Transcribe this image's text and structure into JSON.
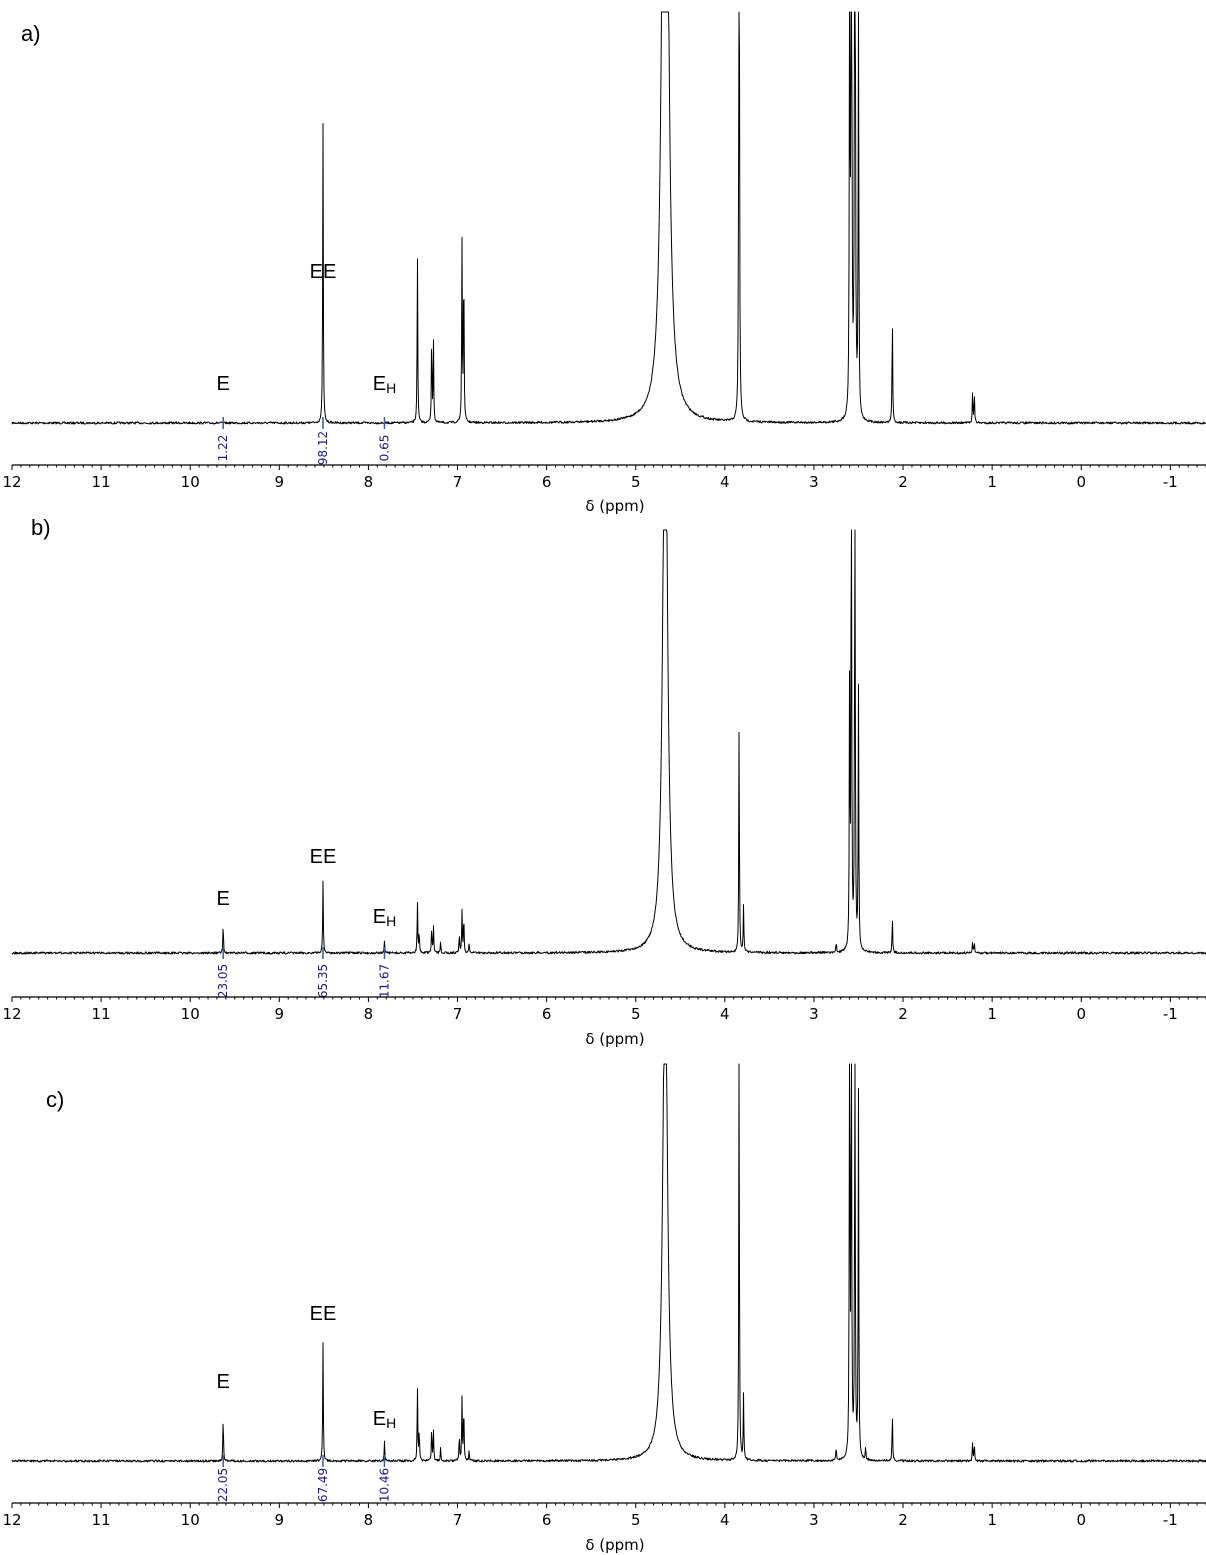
{
  "chart_data": [
    {
      "type": "line",
      "panel_label": "a)",
      "xlabel": "δ (ppm)",
      "xlim": [
        12,
        -1.4
      ],
      "x_ticks": [
        "12",
        "11",
        "10",
        "9",
        "8",
        "7",
        "6",
        "5",
        "4",
        "3",
        "2",
        "1",
        "0",
        "-1"
      ],
      "peak_labels": [
        {
          "main": "E",
          "sub": "",
          "ppm": 9.63
        },
        {
          "main": "EE",
          "sub": "",
          "ppm": 8.51
        },
        {
          "main": "E",
          "sub": "H",
          "ppm": 7.82
        }
      ],
      "integrals": [
        {
          "ppm": 9.63,
          "value": "1.22"
        },
        {
          "ppm": 8.51,
          "value": "98.12"
        },
        {
          "ppm": 7.82,
          "value": "0.65"
        }
      ],
      "peaks": [
        {
          "ppm": 8.51,
          "height": 0.3
        },
        {
          "ppm": 7.45,
          "height": 0.17
        },
        {
          "ppm": 7.29,
          "height": 0.09
        },
        {
          "ppm": 7.27,
          "height": 0.08
        },
        {
          "ppm": 6.95,
          "height": 0.18
        },
        {
          "ppm": 6.93,
          "height": 0.17
        },
        {
          "ppm": 4.67,
          "height": 1.2,
          "width": 0.03
        },
        {
          "ppm": 3.84,
          "height": 0.85
        },
        {
          "ppm": 2.6,
          "height": 0.48
        },
        {
          "ppm": 2.58,
          "height": 1.2
        },
        {
          "ppm": 2.54,
          "height": 1.2
        },
        {
          "ppm": 2.5,
          "height": 0.46
        },
        {
          "ppm": 2.12,
          "height": 0.11
        },
        {
          "ppm": 1.22,
          "height": 0.03
        },
        {
          "ppm": 1.2,
          "height": 0.03
        }
      ]
    },
    {
      "type": "line",
      "panel_label": "b)",
      "xlabel": "δ (ppm)",
      "xlim": [
        12,
        -1.4
      ],
      "x_ticks": [
        "12",
        "11",
        "10",
        "9",
        "8",
        "7",
        "6",
        "5",
        "4",
        "3",
        "2",
        "1",
        "0",
        "-1"
      ],
      "peak_labels": [
        {
          "main": "E",
          "sub": "",
          "ppm": 9.63
        },
        {
          "main": "EE",
          "sub": "",
          "ppm": 8.51
        },
        {
          "main": "E",
          "sub": "H",
          "ppm": 7.82
        }
      ],
      "integrals": [
        {
          "ppm": 9.63,
          "value": "23.05"
        },
        {
          "ppm": 8.51,
          "value": "65.35"
        },
        {
          "ppm": 7.82,
          "value": "11.67"
        }
      ],
      "peaks": [
        {
          "ppm": 9.63,
          "height": 0.055
        },
        {
          "ppm": 8.51,
          "height": 0.14
        },
        {
          "ppm": 7.82,
          "height": 0.025
        },
        {
          "ppm": 7.45,
          "height": 0.1
        },
        {
          "ppm": 7.43,
          "height": 0.04
        },
        {
          "ppm": 7.29,
          "height": 0.05
        },
        {
          "ppm": 7.27,
          "height": 0.05
        },
        {
          "ppm": 7.19,
          "height": 0.02
        },
        {
          "ppm": 6.98,
          "height": 0.04
        },
        {
          "ppm": 6.95,
          "height": 0.08
        },
        {
          "ppm": 6.93,
          "height": 0.075
        },
        {
          "ppm": 6.87,
          "height": 0.02
        },
        {
          "ppm": 4.67,
          "height": 1.2,
          "width": 0.03
        },
        {
          "ppm": 3.84,
          "height": 0.45
        },
        {
          "ppm": 3.79,
          "height": 0.09
        },
        {
          "ppm": 2.75,
          "height": 0.02
        },
        {
          "ppm": 2.6,
          "height": 0.52
        },
        {
          "ppm": 2.58,
          "height": 1.2
        },
        {
          "ppm": 2.54,
          "height": 1.2
        },
        {
          "ppm": 2.5,
          "height": 0.5
        },
        {
          "ppm": 2.12,
          "height": 0.07
        },
        {
          "ppm": 1.22,
          "height": 0.02
        },
        {
          "ppm": 1.2,
          "height": 0.02
        }
      ]
    },
    {
      "type": "line",
      "panel_label": "c)",
      "xlabel": "δ (ppm)",
      "xlim": [
        12,
        -1.4
      ],
      "x_ticks": [
        "12",
        "11",
        "10",
        "9",
        "8",
        "7",
        "6",
        "5",
        "4",
        "3",
        "2",
        "1",
        "0",
        "-1"
      ],
      "peak_labels": [
        {
          "main": "E",
          "sub": "",
          "ppm": 9.63
        },
        {
          "main": "EE",
          "sub": "",
          "ppm": 8.51
        },
        {
          "main": "E",
          "sub": "H",
          "ppm": 7.82
        }
      ],
      "integrals": [
        {
          "ppm": 9.63,
          "value": "22.05"
        },
        {
          "ppm": 8.51,
          "value": "67.49"
        },
        {
          "ppm": 7.82,
          "value": "10.46"
        }
      ],
      "peaks": [
        {
          "ppm": 9.63,
          "height": 0.105
        },
        {
          "ppm": 8.51,
          "height": 0.27
        },
        {
          "ppm": 7.82,
          "height": 0.045
        },
        {
          "ppm": 7.45,
          "height": 0.17
        },
        {
          "ppm": 7.43,
          "height": 0.07
        },
        {
          "ppm": 7.29,
          "height": 0.08
        },
        {
          "ppm": 7.27,
          "height": 0.07
        },
        {
          "ppm": 7.19,
          "height": 0.03
        },
        {
          "ppm": 6.98,
          "height": 0.06
        },
        {
          "ppm": 6.95,
          "height": 0.14
        },
        {
          "ppm": 6.93,
          "height": 0.13
        },
        {
          "ppm": 6.87,
          "height": 0.025
        },
        {
          "ppm": 4.67,
          "height": 1.2,
          "width": 0.03
        },
        {
          "ppm": 3.84,
          "height": 0.97
        },
        {
          "ppm": 3.79,
          "height": 0.15
        },
        {
          "ppm": 2.75,
          "height": 0.03
        },
        {
          "ppm": 2.6,
          "height": 1.2
        },
        {
          "ppm": 2.58,
          "height": 1.2
        },
        {
          "ppm": 2.54,
          "height": 1.2
        },
        {
          "ppm": 2.5,
          "height": 0.83
        },
        {
          "ppm": 2.42,
          "height": 0.03
        },
        {
          "ppm": 2.12,
          "height": 0.11
        },
        {
          "ppm": 1.22,
          "height": 0.04
        },
        {
          "ppm": 1.2,
          "height": 0.04
        }
      ]
    }
  ]
}
